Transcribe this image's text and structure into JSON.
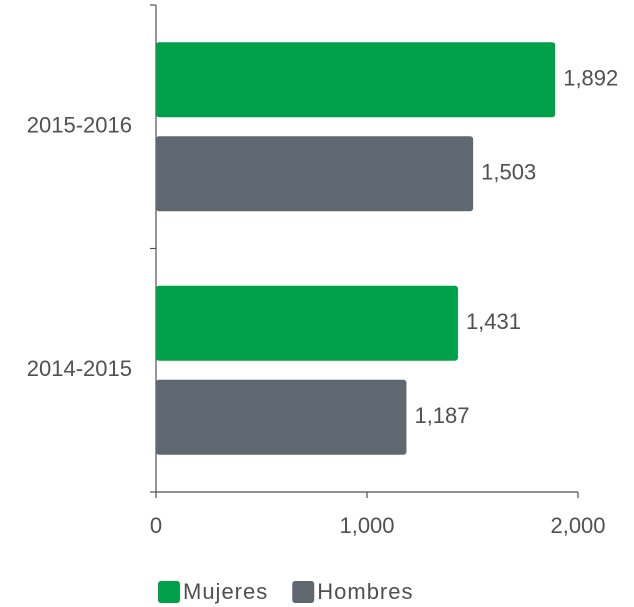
{
  "chart_data": {
    "type": "bar",
    "orientation": "horizontal",
    "categories": [
      "2015-2016",
      "2014-2015"
    ],
    "series": [
      {
        "name": "Mujeres",
        "color": "#00a04a",
        "values": [
          1892,
          1431
        ],
        "value_labels": [
          "1,892",
          "1,431"
        ]
      },
      {
        "name": "Hombres",
        "color": "#5f6770",
        "values": [
          1503,
          1187
        ],
        "value_labels": [
          "1,503",
          "1,187"
        ]
      }
    ],
    "xlim": [
      0,
      2000
    ],
    "xticks": [
      0,
      {
        "value": 1000,
        "label": "1,000"
      },
      {
        "value": 2000,
        "label": "2,000"
      }
    ],
    "legend": "bottom"
  }
}
